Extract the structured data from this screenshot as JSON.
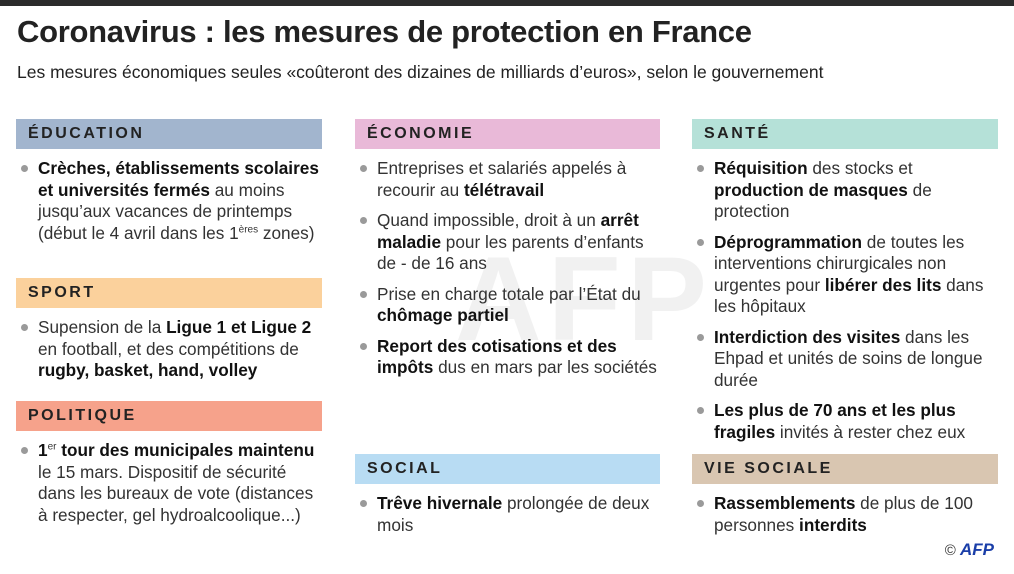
{
  "title": "Coronavirus : les mesures de protection en France",
  "subtitle": "Les mesures économiques seules «coûteront des dizaines de milliards d’euros», selon le gouvernement",
  "colors": {
    "education": "#a2b5ce",
    "sport": "#fbd19c",
    "politique": "#f6a28b",
    "economie": "#e9b9d8",
    "social": "#b8dcf3",
    "sante": "#b5e1d8",
    "vie_sociale": "#d9c6b1"
  },
  "sections": {
    "education": {
      "title": "ÉDUCATION",
      "items": [
        [
          {
            "b": "Crèches, établissements scolaires et universités fermés"
          },
          {
            "t": " au moins jusqu’aux vacances de printemps (début le 4 avril dans les 1"
          },
          {
            "sup": "ères"
          },
          {
            "t": " zones)"
          }
        ]
      ]
    },
    "sport": {
      "title": "SPORT",
      "items": [
        [
          {
            "t": "Supension de la "
          },
          {
            "b": "Ligue 1 et Ligue 2"
          },
          {
            "t": " en football, et des compétitions de "
          },
          {
            "b": "rugby, basket, hand, volley"
          }
        ]
      ]
    },
    "politique": {
      "title": "POLITIQUE",
      "items": [
        [
          {
            "b": "1"
          },
          {
            "sup": "er"
          },
          {
            "b": " tour des municipales maintenu"
          },
          {
            "t": " le 15 mars. Dispositif de sécurité dans les bureaux de vote (distances à respecter, gel hydroalcoolique...)"
          }
        ]
      ]
    },
    "economie": {
      "title": "ÉCONOMIE",
      "items": [
        [
          {
            "t": "Entreprises et salariés appelés à recourir au "
          },
          {
            "b": "télétravail"
          }
        ],
        [
          {
            "t": "Quand impossible, droit à un "
          },
          {
            "b": "arrêt maladie"
          },
          {
            "t": " pour les parents d’enfants de - de 16 ans"
          }
        ],
        [
          {
            "t": "Prise en charge totale par l’État du "
          },
          {
            "b": "chômage partiel"
          }
        ],
        [
          {
            "b": "Report des cotisations et des impôts"
          },
          {
            "t": " dus en mars par les sociétés"
          }
        ]
      ]
    },
    "social": {
      "title": "SOCIAL",
      "items": [
        [
          {
            "b": "Trêve hivernale"
          },
          {
            "t": " prolongée de deux mois"
          }
        ]
      ]
    },
    "sante": {
      "title": "SANTÉ",
      "items": [
        [
          {
            "b": "Réquisition"
          },
          {
            "t": " des stocks et "
          },
          {
            "b": "production de masques"
          },
          {
            "t": " de protection"
          }
        ],
        [
          {
            "b": "Déprogrammation"
          },
          {
            "t": " de toutes les interventions chirurgicales non urgentes pour "
          },
          {
            "b": "libérer des lits"
          },
          {
            "t": " dans les hôpitaux"
          }
        ],
        [
          {
            "b": "Interdiction des visites"
          },
          {
            "t": " dans les Ehpad et unités de soins de longue durée"
          }
        ],
        [
          {
            "b": "Les plus de 70 ans et les plus fragiles"
          },
          {
            "t": " invités à rester chez eux"
          }
        ]
      ]
    },
    "vie_sociale": {
      "title": "VIE SOCIALE",
      "items": [
        [
          {
            "b": "Rassemblements"
          },
          {
            "t": " de plus de 100 personnes "
          },
          {
            "b": "interdits"
          }
        ]
      ]
    }
  },
  "watermark": "AFP",
  "credit": {
    "symbol": "©",
    "agency": "AFP"
  }
}
